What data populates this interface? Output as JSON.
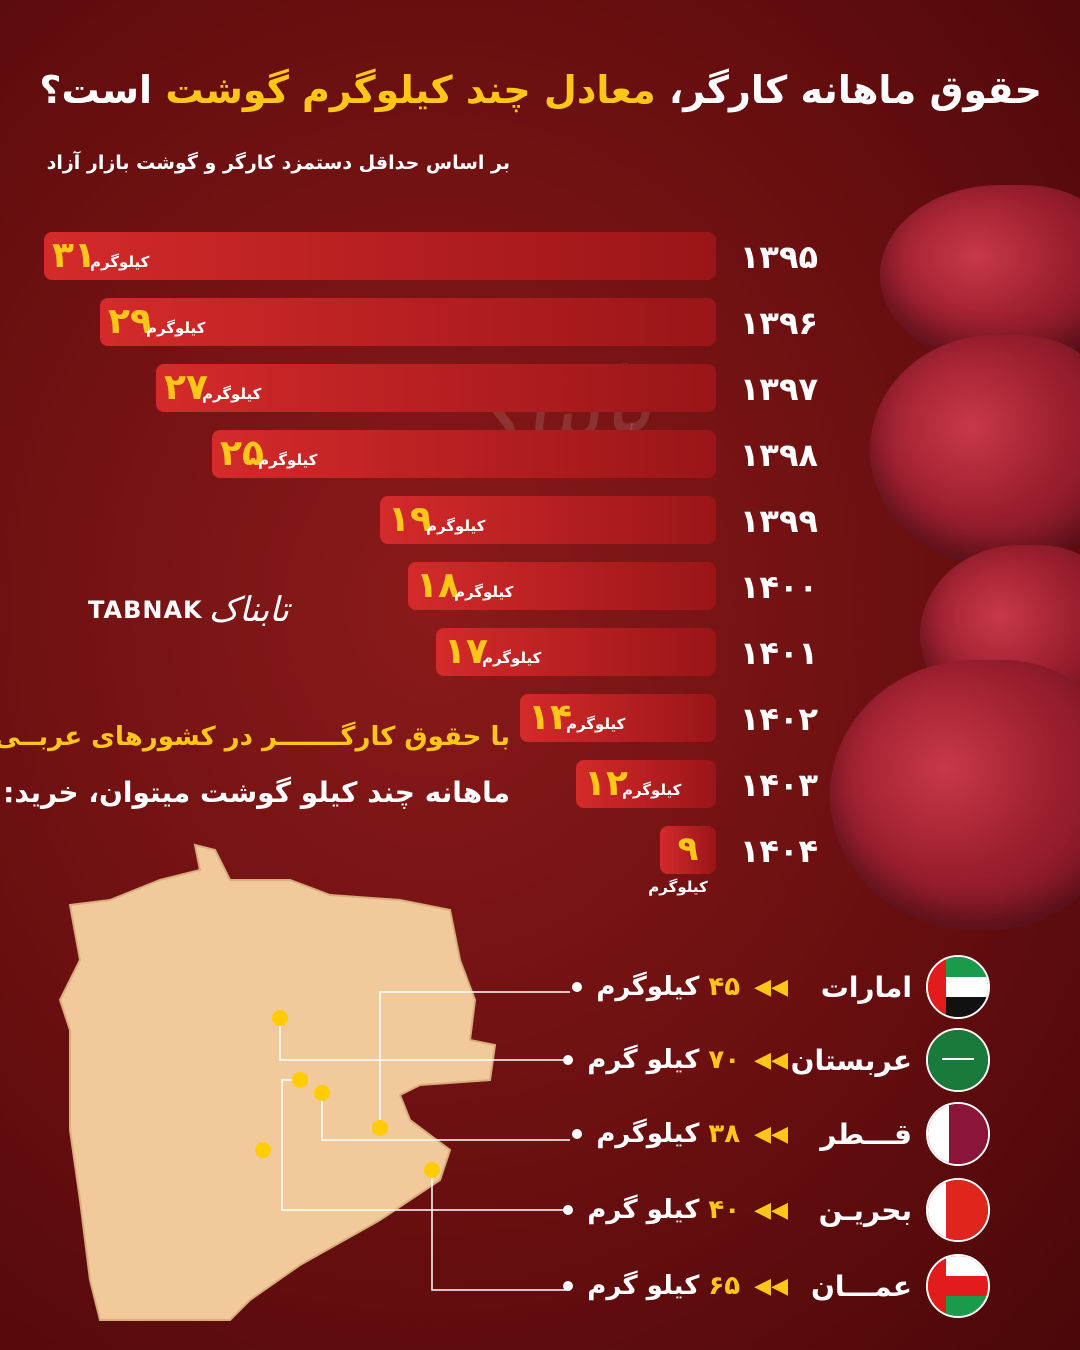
{
  "header": {
    "title_part1": "حقوق ماهانه کارگر،",
    "title_highlight": "معادل چند کیلوگرم گوشت",
    "title_part2": "است؟",
    "subtitle": "بر اساس حداقل دستمزد کارگر و گوشت بازار آزاد"
  },
  "chart_data": {
    "type": "bar",
    "orientation": "horizontal",
    "categories": [
      "۱۳۹۵",
      "۱۳۹۶",
      "۱۳۹۷",
      "۱۳۹۸",
      "۱۳۹۹",
      "۱۴۰۰",
      "۱۴۰۱",
      "۱۴۰۲",
      "۱۴۰۳",
      "۱۴۰۴"
    ],
    "values": [
      31,
      29,
      27,
      25,
      19,
      18,
      17,
      14,
      12,
      9
    ],
    "unit": "کیلوگرم",
    "colors": {
      "bar_start": "#d42a2a",
      "bar_end": "#9a1518",
      "value": "#ffc61a",
      "unit": "#ffffff"
    }
  },
  "logo": {
    "en": "TABNAK",
    "fa": "تابناک"
  },
  "arab_section": {
    "line1": "با حقوق کارگـــــــر در کشورهای عربــی",
    "line2": "ماهانه چند کیلو گوشت میتوان، خرید:"
  },
  "countries": [
    {
      "name": "امارات",
      "amount": "۴۵",
      "unit": "کیلوگرم",
      "flag": "uae"
    },
    {
      "name": "عربستان",
      "amount": "۷۰",
      "unit": "کیلو گرم",
      "flag": "saudi"
    },
    {
      "name": "قـــطر",
      "amount": "۳۸",
      "unit": "کیلوگرم",
      "flag": "qatar"
    },
    {
      "name": "بحریـن",
      "amount": "۴۰",
      "unit": "کیلو گرم",
      "flag": "bahrain"
    },
    {
      "name": "عمـــان",
      "amount": "۶۵",
      "unit": "کیلو گرم",
      "flag": "oman"
    }
  ],
  "colors": {
    "background": "#6a0f10",
    "accent": "#ffc61a",
    "map": "#f2c99a"
  }
}
